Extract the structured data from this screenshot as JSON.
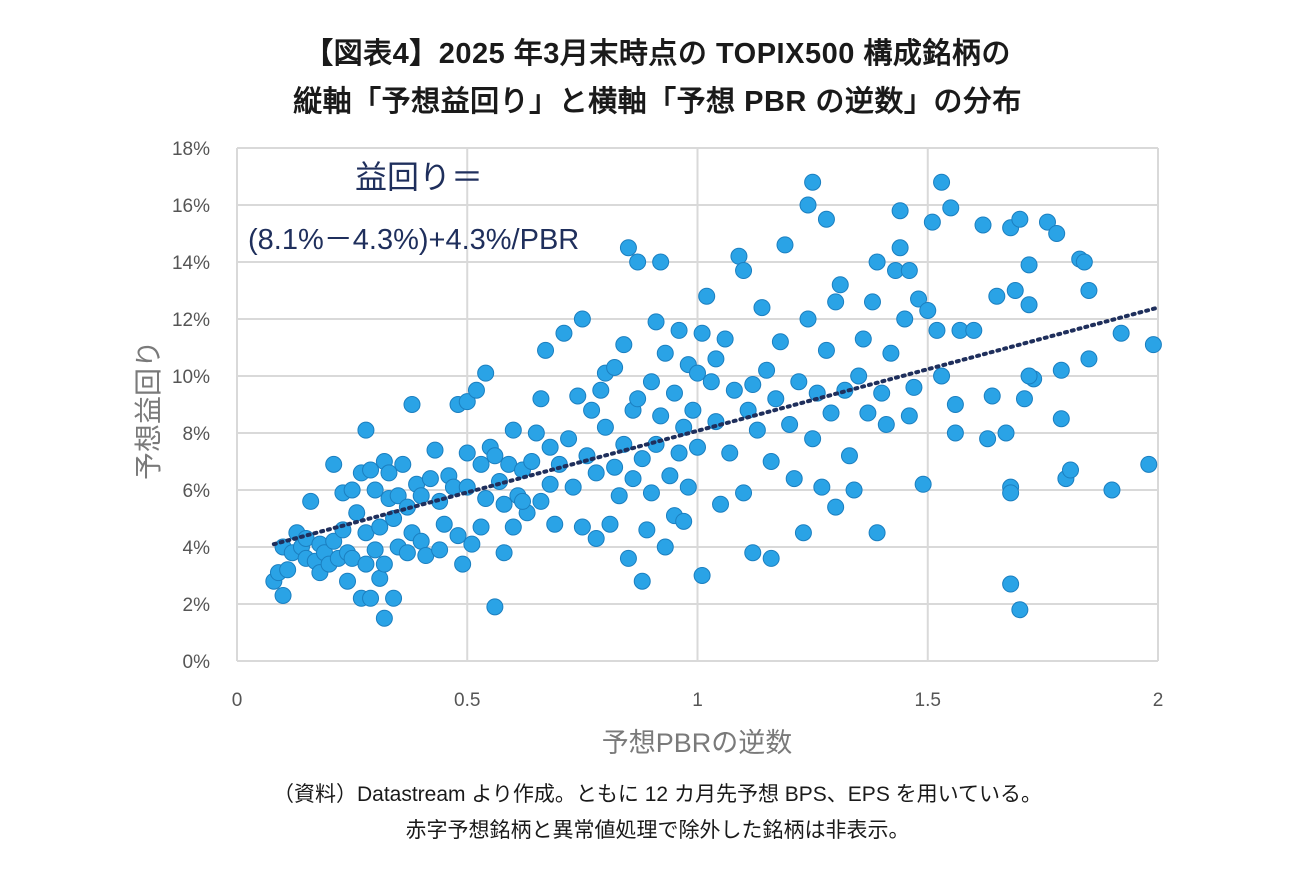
{
  "title_line1": "【図表4】2025 年3月末時点の TOPIX500 構成銘柄の",
  "title_line2": "縦軸「予想益回り」と横軸「予想 PBR の逆数」の分布",
  "annotation_line1": "益回り＝",
  "annotation_line2": "(8.1%－4.3%)+4.3%/PBR",
  "source_line1": "（資料）Datastream より作成。ともに 12 カ月先予想 BPS、EPS を用いている。",
  "source_line2": "赤字予想銘柄と異常値処理で除外した銘柄は非表示。",
  "colors": {
    "point": "#2aa3e6",
    "point_stroke": "#1b7fc0",
    "trend": "#1f2f5c",
    "grid": "#d9d9d9"
  },
  "chart_data": {
    "type": "scatter",
    "title": "",
    "xlabel": "予想PBRの逆数",
    "ylabel": "予想益回り",
    "xlim": [
      0,
      2
    ],
    "ylim": [
      0,
      0.18
    ],
    "x_ticks": [
      0,
      0.5,
      1,
      1.5,
      2
    ],
    "x_tick_labels": [
      "0",
      "0.5",
      "1",
      "1.5",
      "2"
    ],
    "y_ticks": [
      0,
      0.02,
      0.04,
      0.06,
      0.08,
      0.1,
      0.12,
      0.14,
      0.16,
      0.18
    ],
    "y_tick_labels": [
      "0%",
      "2%",
      "4%",
      "6%",
      "8%",
      "10%",
      "12%",
      "14%",
      "16%",
      "18%"
    ],
    "grid": true,
    "trendline": {
      "style": "dotted",
      "intercept": 0.038,
      "slope": 0.043,
      "x_range": [
        0.08,
        2.0
      ]
    },
    "points": [
      [
        0.08,
        0.028
      ],
      [
        0.09,
        0.031
      ],
      [
        0.1,
        0.023
      ],
      [
        0.1,
        0.04
      ],
      [
        0.11,
        0.032
      ],
      [
        0.12,
        0.038
      ],
      [
        0.13,
        0.045
      ],
      [
        0.14,
        0.04
      ],
      [
        0.15,
        0.036
      ],
      [
        0.15,
        0.043
      ],
      [
        0.16,
        0.056
      ],
      [
        0.17,
        0.035
      ],
      [
        0.18,
        0.031
      ],
      [
        0.18,
        0.041
      ],
      [
        0.19,
        0.038
      ],
      [
        0.2,
        0.034
      ],
      [
        0.21,
        0.042
      ],
      [
        0.21,
        0.069
      ],
      [
        0.22,
        0.036
      ],
      [
        0.23,
        0.046
      ],
      [
        0.23,
        0.059
      ],
      [
        0.24,
        0.028
      ],
      [
        0.24,
        0.038
      ],
      [
        0.25,
        0.06
      ],
      [
        0.25,
        0.036
      ],
      [
        0.26,
        0.052
      ],
      [
        0.27,
        0.022
      ],
      [
        0.27,
        0.066
      ],
      [
        0.28,
        0.081
      ],
      [
        0.28,
        0.045
      ],
      [
        0.28,
        0.034
      ],
      [
        0.29,
        0.022
      ],
      [
        0.29,
        0.067
      ],
      [
        0.3,
        0.039
      ],
      [
        0.3,
        0.06
      ],
      [
        0.31,
        0.029
      ],
      [
        0.31,
        0.047
      ],
      [
        0.32,
        0.07
      ],
      [
        0.32,
        0.034
      ],
      [
        0.32,
        0.015
      ],
      [
        0.33,
        0.057
      ],
      [
        0.33,
        0.066
      ],
      [
        0.34,
        0.022
      ],
      [
        0.34,
        0.05
      ],
      [
        0.35,
        0.058
      ],
      [
        0.35,
        0.04
      ],
      [
        0.36,
        0.069
      ],
      [
        0.37,
        0.038
      ],
      [
        0.37,
        0.054
      ],
      [
        0.38,
        0.09
      ],
      [
        0.38,
        0.045
      ],
      [
        0.39,
        0.062
      ],
      [
        0.4,
        0.042
      ],
      [
        0.4,
        0.058
      ],
      [
        0.41,
        0.037
      ],
      [
        0.42,
        0.064
      ],
      [
        0.43,
        0.074
      ],
      [
        0.44,
        0.039
      ],
      [
        0.44,
        0.056
      ],
      [
        0.45,
        0.048
      ],
      [
        0.46,
        0.065
      ],
      [
        0.47,
        0.061
      ],
      [
        0.48,
        0.09
      ],
      [
        0.48,
        0.044
      ],
      [
        0.49,
        0.034
      ],
      [
        0.5,
        0.091
      ],
      [
        0.5,
        0.073
      ],
      [
        0.5,
        0.061
      ],
      [
        0.51,
        0.041
      ],
      [
        0.52,
        0.095
      ],
      [
        0.53,
        0.047
      ],
      [
        0.53,
        0.069
      ],
      [
        0.54,
        0.101
      ],
      [
        0.54,
        0.057
      ],
      [
        0.55,
        0.075
      ],
      [
        0.56,
        0.019
      ],
      [
        0.56,
        0.072
      ],
      [
        0.57,
        0.063
      ],
      [
        0.58,
        0.038
      ],
      [
        0.58,
        0.055
      ],
      [
        0.59,
        0.069
      ],
      [
        0.6,
        0.081
      ],
      [
        0.6,
        0.047
      ],
      [
        0.61,
        0.058
      ],
      [
        0.62,
        0.067
      ],
      [
        0.63,
        0.052
      ],
      [
        0.64,
        0.07
      ],
      [
        0.65,
        0.08
      ],
      [
        0.66,
        0.092
      ],
      [
        0.66,
        0.056
      ],
      [
        0.67,
        0.109
      ],
      [
        0.68,
        0.075
      ],
      [
        0.68,
        0.062
      ],
      [
        0.69,
        0.048
      ],
      [
        0.7,
        0.069
      ],
      [
        0.71,
        0.115
      ],
      [
        0.72,
        0.078
      ],
      [
        0.73,
        0.061
      ],
      [
        0.74,
        0.093
      ],
      [
        0.75,
        0.12
      ],
      [
        0.75,
        0.047
      ],
      [
        0.76,
        0.072
      ],
      [
        0.77,
        0.088
      ],
      [
        0.78,
        0.043
      ],
      [
        0.78,
        0.066
      ],
      [
        0.79,
        0.095
      ],
      [
        0.8,
        0.082
      ],
      [
        0.8,
        0.101
      ],
      [
        0.81,
        0.048
      ],
      [
        0.82,
        0.068
      ],
      [
        0.83,
        0.058
      ],
      [
        0.84,
        0.111
      ],
      [
        0.84,
        0.076
      ],
      [
        0.85,
        0.145
      ],
      [
        0.85,
        0.036
      ],
      [
        0.86,
        0.088
      ],
      [
        0.86,
        0.064
      ],
      [
        0.87,
        0.14
      ],
      [
        0.87,
        0.092
      ],
      [
        0.88,
        0.028
      ],
      [
        0.88,
        0.071
      ],
      [
        0.89,
        0.046
      ],
      [
        0.9,
        0.098
      ],
      [
        0.9,
        0.059
      ],
      [
        0.91,
        0.119
      ],
      [
        0.91,
        0.076
      ],
      [
        0.92,
        0.14
      ],
      [
        0.92,
        0.086
      ],
      [
        0.93,
        0.108
      ],
      [
        0.93,
        0.04
      ],
      [
        0.94,
        0.065
      ],
      [
        0.95,
        0.094
      ],
      [
        0.95,
        0.051
      ],
      [
        0.96,
        0.116
      ],
      [
        0.96,
        0.073
      ],
      [
        0.97,
        0.082
      ],
      [
        0.98,
        0.104
      ],
      [
        0.98,
        0.061
      ],
      [
        0.99,
        0.088
      ],
      [
        1.0,
        0.101
      ],
      [
        1.0,
        0.075
      ],
      [
        1.01,
        0.115
      ],
      [
        1.01,
        0.03
      ],
      [
        1.02,
        0.128
      ],
      [
        1.03,
        0.098
      ],
      [
        1.04,
        0.084
      ],
      [
        1.05,
        0.055
      ],
      [
        1.06,
        0.113
      ],
      [
        1.07,
        0.073
      ],
      [
        1.08,
        0.095
      ],
      [
        1.09,
        0.142
      ],
      [
        1.1,
        0.137
      ],
      [
        1.1,
        0.059
      ],
      [
        1.11,
        0.088
      ],
      [
        1.12,
        0.038
      ],
      [
        1.13,
        0.081
      ],
      [
        1.14,
        0.124
      ],
      [
        1.15,
        0.102
      ],
      [
        1.16,
        0.036
      ],
      [
        1.16,
        0.07
      ],
      [
        1.17,
        0.092
      ],
      [
        1.18,
        0.112
      ],
      [
        1.19,
        0.146
      ],
      [
        1.2,
        0.083
      ],
      [
        1.21,
        0.064
      ],
      [
        1.22,
        0.098
      ],
      [
        1.23,
        0.045
      ],
      [
        1.24,
        0.16
      ],
      [
        1.24,
        0.12
      ],
      [
        1.25,
        0.168
      ],
      [
        1.25,
        0.078
      ],
      [
        1.26,
        0.094
      ],
      [
        1.27,
        0.061
      ],
      [
        1.28,
        0.155
      ],
      [
        1.28,
        0.109
      ],
      [
        1.29,
        0.087
      ],
      [
        1.3,
        0.126
      ],
      [
        1.3,
        0.054
      ],
      [
        1.31,
        0.132
      ],
      [
        1.32,
        0.095
      ],
      [
        1.33,
        0.072
      ],
      [
        1.34,
        0.06
      ],
      [
        1.35,
        0.1
      ],
      [
        1.36,
        0.113
      ],
      [
        1.37,
        0.087
      ],
      [
        1.38,
        0.126
      ],
      [
        1.39,
        0.14
      ],
      [
        1.39,
        0.045
      ],
      [
        1.4,
        0.094
      ],
      [
        1.41,
        0.083
      ],
      [
        1.42,
        0.108
      ],
      [
        1.43,
        0.137
      ],
      [
        1.44,
        0.158
      ],
      [
        1.44,
        0.145
      ],
      [
        1.45,
        0.12
      ],
      [
        1.46,
        0.137
      ],
      [
        1.46,
        0.086
      ],
      [
        1.47,
        0.096
      ],
      [
        1.48,
        0.127
      ],
      [
        1.49,
        0.062
      ],
      [
        1.5,
        0.123
      ],
      [
        1.51,
        0.154
      ],
      [
        1.52,
        0.116
      ],
      [
        1.53,
        0.168
      ],
      [
        1.53,
        0.1
      ],
      [
        1.55,
        0.159
      ],
      [
        1.56,
        0.09
      ],
      [
        1.56,
        0.08
      ],
      [
        1.57,
        0.116
      ],
      [
        1.6,
        0.116
      ],
      [
        1.62,
        0.153
      ],
      [
        1.63,
        0.078
      ],
      [
        1.64,
        0.093
      ],
      [
        1.65,
        0.128
      ],
      [
        1.67,
        0.08
      ],
      [
        1.68,
        0.152
      ],
      [
        1.68,
        0.061
      ],
      [
        1.68,
        0.059
      ],
      [
        1.69,
        0.13
      ],
      [
        1.7,
        0.155
      ],
      [
        1.7,
        0.018
      ],
      [
        1.71,
        0.092
      ],
      [
        1.72,
        0.125
      ],
      [
        1.72,
        0.139
      ],
      [
        1.73,
        0.099
      ],
      [
        1.76,
        0.154
      ],
      [
        1.78,
        0.15
      ],
      [
        1.79,
        0.102
      ],
      [
        1.79,
        0.085
      ],
      [
        1.8,
        0.064
      ],
      [
        1.81,
        0.067
      ],
      [
        1.83,
        0.141
      ],
      [
        1.84,
        0.14
      ],
      [
        1.85,
        0.13
      ],
      [
        1.85,
        0.106
      ],
      [
        1.9,
        0.06
      ],
      [
        1.92,
        0.115
      ],
      [
        1.98,
        0.069
      ],
      [
        1.99,
        0.111
      ],
      [
        1.68,
        0.027
      ],
      [
        1.72,
        0.1
      ],
      [
        1.04,
        0.106
      ],
      [
        1.12,
        0.097
      ],
      [
        0.97,
        0.049
      ],
      [
        0.82,
        0.103
      ],
      [
        0.62,
        0.056
      ]
    ]
  }
}
